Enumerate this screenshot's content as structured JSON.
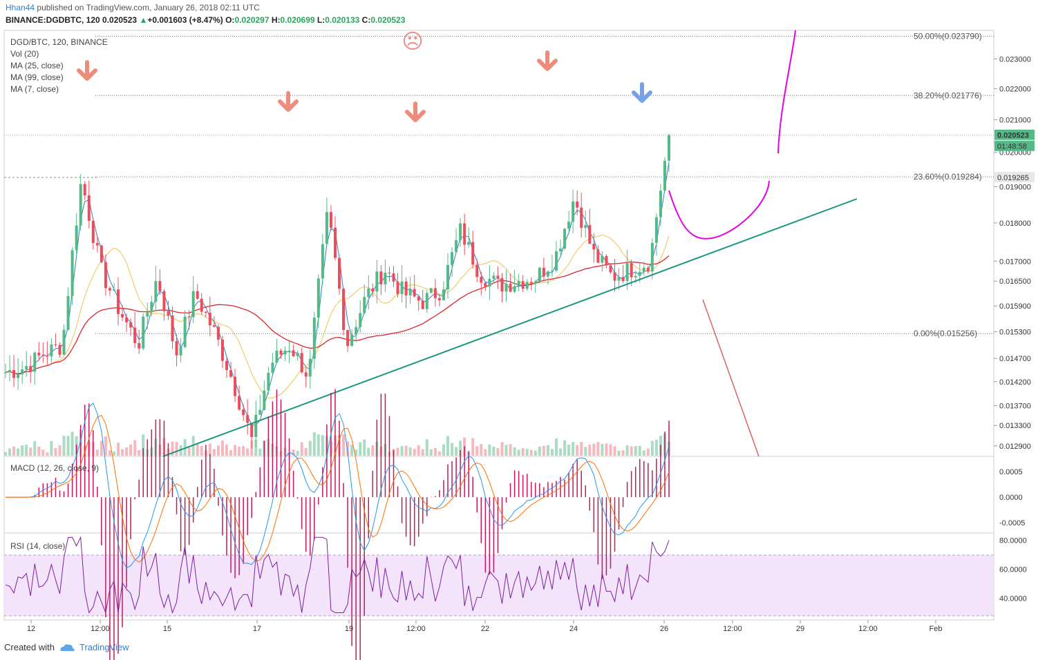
{
  "header": {
    "user": "Hhan44",
    "published": "published on TradingView.com, January 26, 2018 02:11 UTC",
    "symbol": "BINANCE:DGDBTC, 120",
    "last": "0.020523",
    "change": "+0.001603 (+8.47%)",
    "open_label": "O:",
    "open": "0.020297",
    "high_label": "H:",
    "high": "0.020699",
    "low_label": "L:",
    "low": "0.020133",
    "close_label": "C:",
    "close": "0.020523"
  },
  "legend": {
    "title": "DGD/BTC, 120, BINANCE",
    "vol": "Vol (20)",
    "ma25": "MA (25, close)",
    "ma99": "MA (99, close)",
    "ma7": "MA (7, close)"
  },
  "panes": {
    "macd_label": "MACD (12, 26, close, 9)",
    "rsi_label": "RSI (14, close)"
  },
  "price_axis": {
    "ticks": [
      "0.023000",
      "0.022000",
      "0.021000",
      "0.020000",
      "0.019000",
      "0.018000",
      "0.017000",
      "0.016500",
      "0.015900",
      "0.015300",
      "0.014700",
      "0.014200",
      "0.013700",
      "0.013300",
      "0.012900"
    ],
    "last_price_badge": "0.020523",
    "countdown_badge": "01:48:58",
    "level_badge": "0.019265"
  },
  "macd_axis": {
    "ticks": [
      "0.0005",
      "0.0000",
      "-0.0005"
    ]
  },
  "rsi_axis": {
    "ticks": [
      "80.0000",
      "60.0000",
      "40.0000"
    ]
  },
  "fib_levels": [
    {
      "label": "50.00%(0.023790)"
    },
    {
      "label": "38.20%(0.021776)"
    },
    {
      "label": "23.60%(0.019284)"
    },
    {
      "label": "0.00%(0.015256)"
    }
  ],
  "time_axis": {
    "ticks": [
      "12",
      "12:00",
      "15",
      "17",
      "19",
      "12:00",
      "22",
      "24",
      "26",
      "12:00",
      "29",
      "12:00",
      "Feb"
    ]
  },
  "annotations": {
    "sad_face": "☹"
  },
  "footer": {
    "created_with": "Created with",
    "brand": "TradingView"
  },
  "colors": {
    "up": "#53b987",
    "down": "#eb4d5c",
    "ma7": "#2f7ec4",
    "ma25": "#f2c14e",
    "ma99": "#d8262c",
    "trend": "#17977d",
    "magenta": "#e600e6",
    "macd": "#2196f3",
    "signal": "#ff6d00",
    "rsi": "#7b1fa2"
  },
  "chart_data": {
    "type": "candlestick",
    "title": "DGD/BTC, 120, BINANCE",
    "x_ticks": [
      "12",
      "12:00",
      "15",
      "17",
      "19",
      "12:00",
      "22",
      "24",
      "26",
      "12:00",
      "29",
      "12:00",
      "Feb"
    ],
    "ylim": [
      0.0127,
      0.024
    ],
    "log_scale": true,
    "approx_close_path": [
      0.0144,
      0.0145,
      0.0148,
      0.015,
      0.0192,
      0.0168,
      0.0158,
      0.015,
      0.0166,
      0.0148,
      0.0162,
      0.0153,
      0.0142,
      0.013,
      0.0146,
      0.015,
      0.0143,
      0.0183,
      0.015,
      0.0161,
      0.0168,
      0.0162,
      0.016,
      0.0163,
      0.0178,
      0.0167,
      0.0164,
      0.0165,
      0.0166,
      0.0171,
      0.0187,
      0.0172,
      0.0166,
      0.0168,
      0.017,
      0.0205
    ],
    "fib_levels": [
      0.02379,
      0.021776,
      0.019284,
      0.015256
    ],
    "last_price": 0.020523,
    "macd_ylim": [
      -0.0007,
      0.0008
    ],
    "rsi_ylim": [
      25,
      85
    ],
    "rsi_band": [
      30,
      70
    ]
  }
}
